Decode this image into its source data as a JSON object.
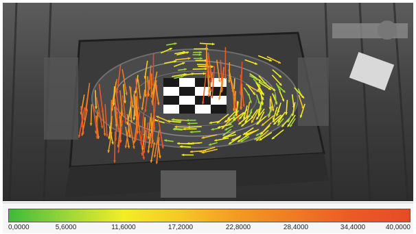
{
  "colorbar": {
    "tick_labels": [
      "0,0000",
      "5,6000",
      "11,6000",
      "17,2000",
      "22,8000",
      "28,4000",
      "34,4000",
      "40,0000"
    ],
    "color_stops": [
      "#3fb93c",
      "#9ad63a",
      "#f2ee24",
      "#f5c824",
      "#f29a22",
      "#ee7a24",
      "#ea5a26",
      "#e84a27"
    ]
  },
  "photo": {
    "description_colors": {
      "background_grayscale": "#6a6a6a",
      "low_magnitude": "#3fb93c",
      "mid_magnitude": "#f2ee24",
      "high_magnitude": "#e8562a"
    }
  }
}
